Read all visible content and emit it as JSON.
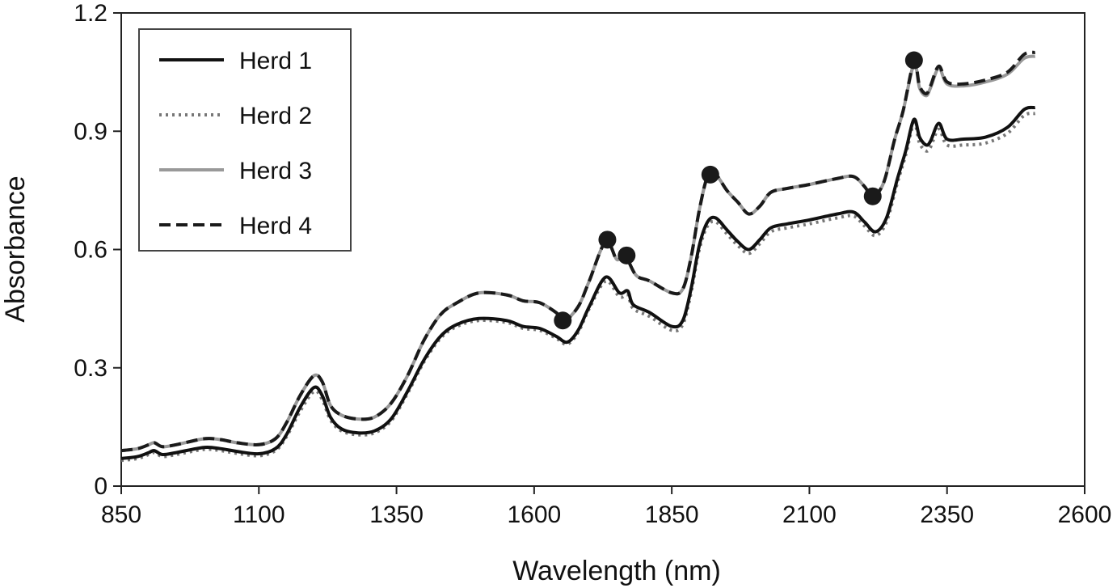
{
  "chart_data": {
    "type": "line",
    "title": "",
    "xlabel": "Wavelength (nm)",
    "ylabel": "Absorbance",
    "xlim": [
      850,
      2600
    ],
    "ylim": [
      0,
      1.2
    ],
    "xticks": [
      850,
      1100,
      1350,
      1600,
      1850,
      2100,
      2350,
      2600
    ],
    "xtick_labels": [
      "850",
      "1100",
      "1350",
      "1600",
      "1850",
      "2100",
      "2350",
      "2600"
    ],
    "yticks": [
      0,
      0.3,
      0.6,
      0.9,
      1.2
    ],
    "ytick_labels": [
      "0",
      "0.3",
      "0.6",
      "0.9",
      "1.2"
    ],
    "grid": false,
    "legend_position": "top-left",
    "series": [
      {
        "name": "Herd 1",
        "style": "solid",
        "color": "#111111",
        "x": [
          850,
          880,
          900,
          910,
          925,
          950,
          1000,
          1030,
          1060,
          1100,
          1130,
          1150,
          1175,
          1200,
          1215,
          1230,
          1250,
          1280,
          1310,
          1340,
          1370,
          1400,
          1430,
          1460,
          1500,
          1550,
          1580,
          1610,
          1640,
          1660,
          1680,
          1700,
          1730,
          1755,
          1770,
          1780,
          1810,
          1850,
          1870,
          1885,
          1900,
          1915,
          1930,
          1950,
          1970,
          1990,
          2010,
          2030,
          2060,
          2100,
          2150,
          2180,
          2200,
          2220,
          2240,
          2260,
          2275,
          2290,
          2300,
          2312,
          2320,
          2335,
          2350,
          2380,
          2420,
          2460,
          2490,
          2510
        ],
        "y": [
          0.07,
          0.075,
          0.085,
          0.09,
          0.08,
          0.085,
          0.098,
          0.095,
          0.088,
          0.082,
          0.095,
          0.13,
          0.2,
          0.25,
          0.23,
          0.175,
          0.145,
          0.135,
          0.14,
          0.17,
          0.24,
          0.32,
          0.38,
          0.41,
          0.425,
          0.42,
          0.405,
          0.4,
          0.38,
          0.365,
          0.395,
          0.455,
          0.53,
          0.49,
          0.495,
          0.46,
          0.44,
          0.405,
          0.42,
          0.5,
          0.61,
          0.67,
          0.68,
          0.65,
          0.62,
          0.6,
          0.625,
          0.655,
          0.665,
          0.675,
          0.69,
          0.695,
          0.67,
          0.645,
          0.68,
          0.78,
          0.85,
          0.93,
          0.885,
          0.865,
          0.875,
          0.92,
          0.88,
          0.88,
          0.885,
          0.91,
          0.955,
          0.96
        ]
      },
      {
        "name": "Herd 2",
        "style": "dotted",
        "color": "#777777",
        "x": [
          850,
          880,
          900,
          910,
          925,
          950,
          1000,
          1030,
          1060,
          1100,
          1130,
          1150,
          1175,
          1200,
          1215,
          1230,
          1250,
          1280,
          1310,
          1340,
          1370,
          1400,
          1430,
          1460,
          1500,
          1550,
          1580,
          1610,
          1640,
          1660,
          1680,
          1700,
          1730,
          1755,
          1770,
          1780,
          1810,
          1850,
          1870,
          1885,
          1900,
          1915,
          1930,
          1950,
          1970,
          1990,
          2010,
          2030,
          2060,
          2100,
          2150,
          2180,
          2200,
          2220,
          2240,
          2260,
          2275,
          2290,
          2300,
          2312,
          2320,
          2335,
          2350,
          2380,
          2420,
          2460,
          2490,
          2510
        ],
        "y": [
          0.065,
          0.07,
          0.08,
          0.085,
          0.075,
          0.08,
          0.093,
          0.09,
          0.083,
          0.077,
          0.09,
          0.125,
          0.19,
          0.24,
          0.22,
          0.168,
          0.14,
          0.13,
          0.135,
          0.165,
          0.235,
          0.315,
          0.375,
          0.405,
          0.42,
          0.415,
          0.4,
          0.395,
          0.375,
          0.36,
          0.39,
          0.45,
          0.52,
          0.48,
          0.485,
          0.45,
          0.43,
          0.395,
          0.41,
          0.49,
          0.6,
          0.66,
          0.67,
          0.64,
          0.61,
          0.59,
          0.615,
          0.645,
          0.655,
          0.665,
          0.68,
          0.685,
          0.66,
          0.635,
          0.67,
          0.77,
          0.84,
          0.92,
          0.87,
          0.85,
          0.86,
          0.905,
          0.865,
          0.865,
          0.87,
          0.895,
          0.94,
          0.945
        ]
      },
      {
        "name": "Herd 3",
        "style": "solid",
        "color": "#999999",
        "x": [
          850,
          880,
          900,
          910,
          925,
          950,
          1000,
          1030,
          1060,
          1100,
          1130,
          1150,
          1175,
          1200,
          1215,
          1230,
          1250,
          1280,
          1310,
          1340,
          1370,
          1400,
          1430,
          1460,
          1500,
          1550,
          1580,
          1610,
          1640,
          1655,
          1680,
          1700,
          1730,
          1750,
          1765,
          1785,
          1810,
          1850,
          1870,
          1885,
          1900,
          1915,
          1930,
          1950,
          1970,
          1990,
          2010,
          2030,
          2060,
          2100,
          2150,
          2180,
          2200,
          2215,
          2235,
          2255,
          2270,
          2290,
          2300,
          2312,
          2320,
          2335,
          2350,
          2380,
          2420,
          2460,
          2490,
          2510
        ],
        "y": [
          0.09,
          0.095,
          0.105,
          0.11,
          0.1,
          0.105,
          0.12,
          0.118,
          0.11,
          0.105,
          0.12,
          0.16,
          0.23,
          0.28,
          0.265,
          0.205,
          0.18,
          0.17,
          0.175,
          0.21,
          0.28,
          0.37,
          0.435,
          0.465,
          0.49,
          0.485,
          0.47,
          0.465,
          0.44,
          0.42,
          0.455,
          0.52,
          0.62,
          0.575,
          0.585,
          0.535,
          0.52,
          0.49,
          0.5,
          0.58,
          0.7,
          0.785,
          0.79,
          0.75,
          0.72,
          0.69,
          0.71,
          0.745,
          0.755,
          0.765,
          0.78,
          0.785,
          0.76,
          0.735,
          0.77,
          0.88,
          0.95,
          1.07,
          1.01,
          0.99,
          1.01,
          1.06,
          1.02,
          1.015,
          1.025,
          1.045,
          1.085,
          1.09
        ]
      },
      {
        "name": "Herd 4",
        "style": "dashed",
        "color": "#1a1a1a",
        "x": [
          850,
          880,
          900,
          910,
          925,
          950,
          1000,
          1030,
          1060,
          1100,
          1130,
          1150,
          1175,
          1200,
          1215,
          1230,
          1250,
          1280,
          1310,
          1340,
          1370,
          1400,
          1430,
          1460,
          1500,
          1550,
          1580,
          1610,
          1640,
          1655,
          1680,
          1700,
          1730,
          1750,
          1765,
          1785,
          1810,
          1850,
          1870,
          1885,
          1900,
          1915,
          1930,
          1950,
          1970,
          1990,
          2010,
          2030,
          2060,
          2100,
          2150,
          2180,
          2200,
          2215,
          2235,
          2255,
          2270,
          2290,
          2300,
          2312,
          2320,
          2335,
          2350,
          2380,
          2420,
          2460,
          2490,
          2510
        ],
        "y": [
          0.09,
          0.095,
          0.105,
          0.11,
          0.1,
          0.105,
          0.12,
          0.118,
          0.11,
          0.105,
          0.12,
          0.16,
          0.23,
          0.28,
          0.265,
          0.205,
          0.18,
          0.17,
          0.175,
          0.21,
          0.28,
          0.37,
          0.435,
          0.465,
          0.49,
          0.485,
          0.47,
          0.465,
          0.44,
          0.42,
          0.455,
          0.52,
          0.62,
          0.575,
          0.585,
          0.535,
          0.52,
          0.49,
          0.5,
          0.58,
          0.7,
          0.785,
          0.79,
          0.75,
          0.72,
          0.69,
          0.71,
          0.745,
          0.755,
          0.765,
          0.78,
          0.785,
          0.76,
          0.735,
          0.77,
          0.88,
          0.95,
          1.075,
          1.015,
          0.995,
          1.015,
          1.065,
          1.025,
          1.02,
          1.03,
          1.05,
          1.095,
          1.1
        ]
      }
    ],
    "markers": [
      {
        "x": 1652,
        "y": 0.42
      },
      {
        "x": 1733,
        "y": 0.625
      },
      {
        "x": 1768,
        "y": 0.585
      },
      {
        "x": 1920,
        "y": 0.79
      },
      {
        "x": 2215,
        "y": 0.735
      },
      {
        "x": 2290,
        "y": 1.08
      }
    ]
  }
}
